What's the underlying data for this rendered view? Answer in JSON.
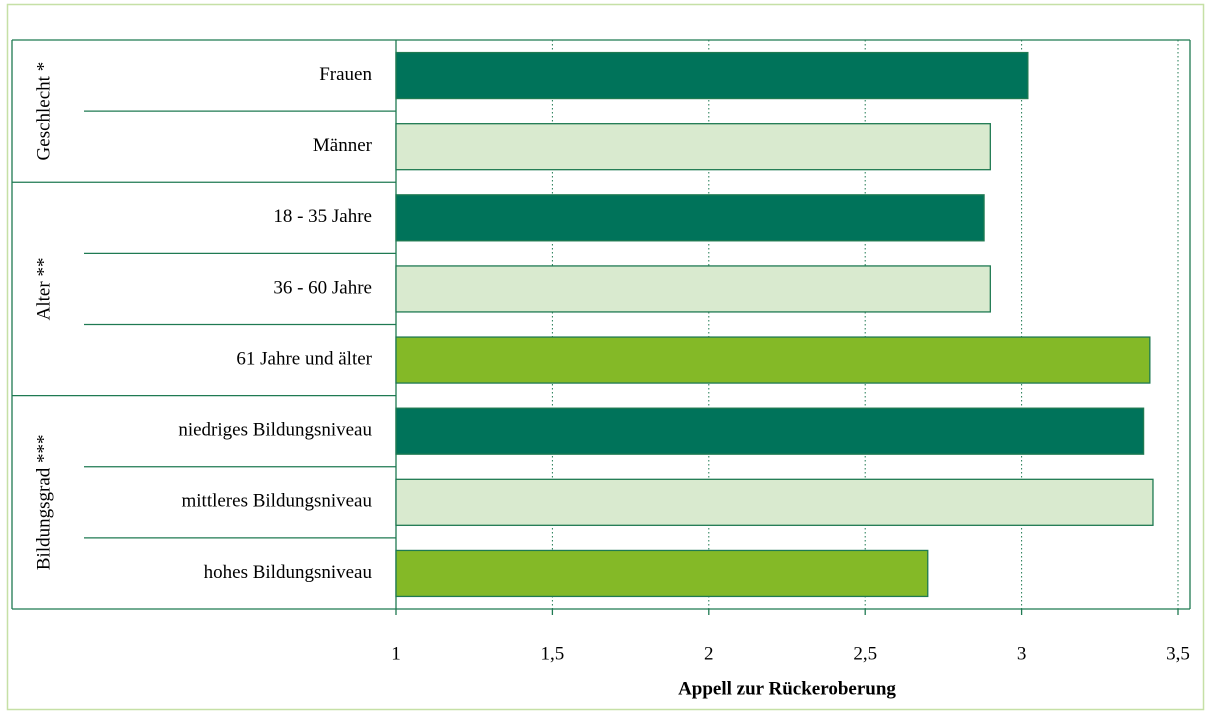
{
  "chart_data": {
    "type": "bar",
    "orientation": "horizontal",
    "x_label": "Appell zur Rückeroberung",
    "groups": [
      {
        "label": "Geschlecht *",
        "categories": [
          "Frauen",
          "Männer"
        ],
        "values": [
          3.02,
          2.9
        ],
        "colors": [
          "#00735a",
          "#d9eacf"
        ]
      },
      {
        "label": "Alter **",
        "categories": [
          "18 - 35 Jahre",
          "36 - 60 Jahre",
          "61 Jahre und älter"
        ],
        "values": [
          2.88,
          2.9,
          3.41
        ],
        "colors": [
          "#00735a",
          "#d9eacf",
          "#84b927"
        ]
      },
      {
        "label": "Bildungsgrad ***",
        "categories": [
          "niedriges Bildungsniveau",
          "mittleres Bildungsniveau",
          "hohes Bildungsniveau"
        ],
        "values": [
          3.39,
          3.42,
          2.7
        ],
        "colors": [
          "#00735a",
          "#d9eacf",
          "#84b927"
        ]
      }
    ],
    "xlim": [
      1,
      3.5
    ],
    "xticks": [
      1,
      {
        "value": 1.5,
        "label": "1,5"
      },
      2,
      {
        "value": 2.5,
        "label": "2,5"
      },
      3,
      {
        "value": 3.5,
        "label": "3,5"
      }
    ],
    "grid": true,
    "bar_edge_color": "#1f7a52"
  }
}
